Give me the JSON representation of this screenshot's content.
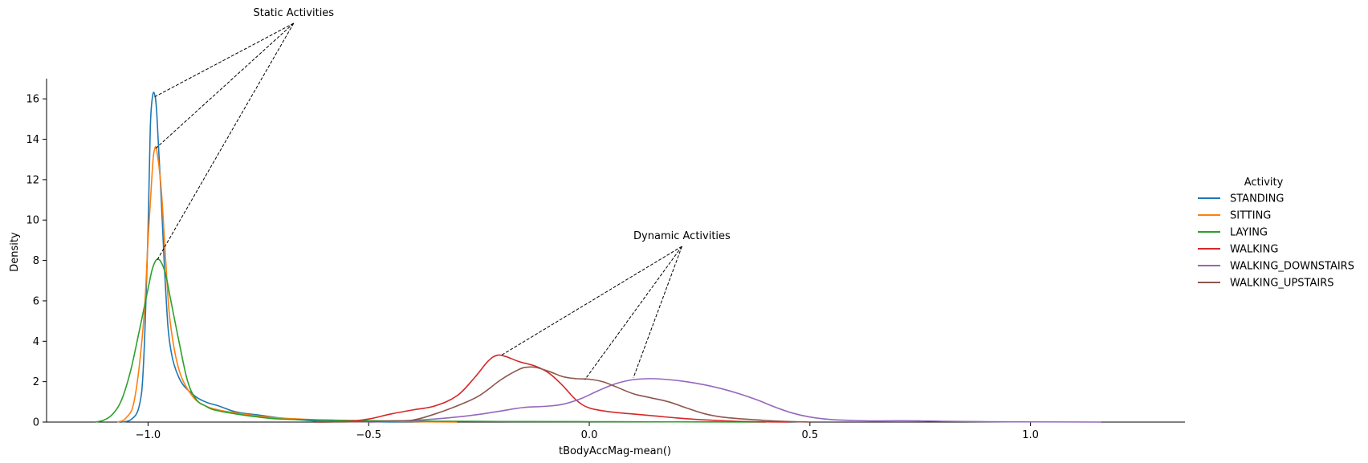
{
  "chart_data": {
    "type": "line",
    "xlabel": "tBodyAccMag-mean()",
    "ylabel": "Density",
    "xlim": [
      -1.23,
      1.35
    ],
    "ylim": [
      0,
      17
    ],
    "xticks": [
      -1.0,
      -0.5,
      0.0,
      0.5,
      1.0
    ],
    "xtick_labels": [
      "−1.0",
      "−0.5",
      "0.0",
      "0.5",
      "1.0"
    ],
    "yticks": [
      0,
      2,
      4,
      6,
      8,
      10,
      12,
      14,
      16
    ],
    "ytick_labels": [
      "0",
      "2",
      "4",
      "6",
      "8",
      "10",
      "12",
      "14",
      "16"
    ],
    "grid": false,
    "legend": {
      "title": "Activity",
      "placement": "right"
    },
    "series": [
      {
        "name": "STANDING",
        "color": "#1f77b4",
        "points": [
          [
            -1.06,
            0
          ],
          [
            -1.04,
            0.1
          ],
          [
            -1.02,
            0.8
          ],
          [
            -1.01,
            3.0
          ],
          [
            -1.0,
            9.5
          ],
          [
            -0.995,
            14.5
          ],
          [
            -0.99,
            16.1
          ],
          [
            -0.985,
            16.2
          ],
          [
            -0.98,
            15.2
          ],
          [
            -0.97,
            11.0
          ],
          [
            -0.96,
            6.5
          ],
          [
            -0.95,
            3.8
          ],
          [
            -0.93,
            2.2
          ],
          [
            -0.9,
            1.4
          ],
          [
            -0.87,
            1.0
          ],
          [
            -0.84,
            0.8
          ],
          [
            -0.8,
            0.5
          ],
          [
            -0.75,
            0.35
          ],
          [
            -0.7,
            0.2
          ],
          [
            -0.65,
            0.1
          ],
          [
            -0.6,
            0.04
          ],
          [
            -0.5,
            0.01
          ],
          [
            -0.4,
            0
          ]
        ]
      },
      {
        "name": "SITTING",
        "color": "#ff7f0e",
        "points": [
          [
            -1.07,
            0
          ],
          [
            -1.05,
            0.2
          ],
          [
            -1.03,
            1.2
          ],
          [
            -1.01,
            5.0
          ],
          [
            -1.0,
            9.0
          ],
          [
            -0.99,
            12.6
          ],
          [
            -0.985,
            13.5
          ],
          [
            -0.98,
            13.4
          ],
          [
            -0.97,
            11.5
          ],
          [
            -0.96,
            8.0
          ],
          [
            -0.95,
            5.0
          ],
          [
            -0.93,
            2.6
          ],
          [
            -0.9,
            1.3
          ],
          [
            -0.87,
            0.8
          ],
          [
            -0.84,
            0.6
          ],
          [
            -0.8,
            0.45
          ],
          [
            -0.75,
            0.3
          ],
          [
            -0.7,
            0.2
          ],
          [
            -0.6,
            0.1
          ],
          [
            -0.5,
            0.05
          ],
          [
            -0.4,
            0.02
          ],
          [
            -0.3,
            0
          ]
        ]
      },
      {
        "name": "LAYING",
        "color": "#2ca02c",
        "points": [
          [
            -1.12,
            0
          ],
          [
            -1.1,
            0.1
          ],
          [
            -1.08,
            0.4
          ],
          [
            -1.06,
            1.1
          ],
          [
            -1.04,
            2.5
          ],
          [
            -1.02,
            4.5
          ],
          [
            -1.0,
            6.6
          ],
          [
            -0.99,
            7.6
          ],
          [
            -0.98,
            8.05
          ],
          [
            -0.97,
            7.9
          ],
          [
            -0.96,
            7.3
          ],
          [
            -0.95,
            6.2
          ],
          [
            -0.93,
            4.0
          ],
          [
            -0.91,
            2.0
          ],
          [
            -0.89,
            1.1
          ],
          [
            -0.87,
            0.8
          ],
          [
            -0.85,
            0.6
          ],
          [
            -0.8,
            0.4
          ],
          [
            -0.75,
            0.25
          ],
          [
            -0.7,
            0.15
          ],
          [
            -0.6,
            0.1
          ],
          [
            -0.5,
            0.07
          ],
          [
            -0.4,
            0.05
          ],
          [
            -0.3,
            0.04
          ],
          [
            -0.2,
            0.03
          ],
          [
            0.0,
            0.02
          ],
          [
            0.2,
            0.01
          ],
          [
            0.4,
            0
          ]
        ]
      },
      {
        "name": "WALKING",
        "color": "#d62728",
        "points": [
          [
            -0.62,
            0
          ],
          [
            -0.55,
            0.03
          ],
          [
            -0.5,
            0.15
          ],
          [
            -0.45,
            0.4
          ],
          [
            -0.4,
            0.6
          ],
          [
            -0.35,
            0.8
          ],
          [
            -0.3,
            1.3
          ],
          [
            -0.26,
            2.2
          ],
          [
            -0.23,
            3.0
          ],
          [
            -0.21,
            3.3
          ],
          [
            -0.19,
            3.25
          ],
          [
            -0.16,
            3.0
          ],
          [
            -0.12,
            2.75
          ],
          [
            -0.09,
            2.4
          ],
          [
            -0.06,
            1.8
          ],
          [
            -0.03,
            1.1
          ],
          [
            0.0,
            0.7
          ],
          [
            0.05,
            0.5
          ],
          [
            0.1,
            0.4
          ],
          [
            0.15,
            0.3
          ],
          [
            0.2,
            0.2
          ],
          [
            0.25,
            0.12
          ],
          [
            0.3,
            0.07
          ],
          [
            0.35,
            0.03
          ],
          [
            0.4,
            0.01
          ],
          [
            0.45,
            0
          ]
        ]
      },
      {
        "name": "WALKING_DOWNSTAIRS",
        "color": "#9467bd",
        "points": [
          [
            -0.5,
            0
          ],
          [
            -0.45,
            0.03
          ],
          [
            -0.4,
            0.08
          ],
          [
            -0.35,
            0.15
          ],
          [
            -0.3,
            0.25
          ],
          [
            -0.25,
            0.38
          ],
          [
            -0.2,
            0.55
          ],
          [
            -0.15,
            0.72
          ],
          [
            -0.1,
            0.78
          ],
          [
            -0.06,
            0.88
          ],
          [
            -0.02,
            1.15
          ],
          [
            0.02,
            1.55
          ],
          [
            0.06,
            1.9
          ],
          [
            0.1,
            2.1
          ],
          [
            0.14,
            2.15
          ],
          [
            0.18,
            2.1
          ],
          [
            0.22,
            2.0
          ],
          [
            0.26,
            1.85
          ],
          [
            0.3,
            1.65
          ],
          [
            0.34,
            1.4
          ],
          [
            0.38,
            1.1
          ],
          [
            0.42,
            0.75
          ],
          [
            0.46,
            0.45
          ],
          [
            0.5,
            0.25
          ],
          [
            0.55,
            0.12
          ],
          [
            0.6,
            0.08
          ],
          [
            0.65,
            0.06
          ],
          [
            0.7,
            0.07
          ],
          [
            0.75,
            0.06
          ],
          [
            0.8,
            0.04
          ],
          [
            0.9,
            0.02
          ],
          [
            1.0,
            0.01
          ],
          [
            1.1,
            0.005
          ],
          [
            1.16,
            0
          ]
        ]
      },
      {
        "name": "WALKING_UPSTAIRS",
        "color": "#8c564b",
        "points": [
          [
            -0.62,
            0
          ],
          [
            -0.5,
            0.02
          ],
          [
            -0.45,
            0.06
          ],
          [
            -0.4,
            0.1
          ],
          [
            -0.35,
            0.4
          ],
          [
            -0.3,
            0.8
          ],
          [
            -0.25,
            1.3
          ],
          [
            -0.2,
            2.1
          ],
          [
            -0.16,
            2.6
          ],
          [
            -0.14,
            2.72
          ],
          [
            -0.12,
            2.7
          ],
          [
            -0.09,
            2.5
          ],
          [
            -0.06,
            2.25
          ],
          [
            -0.03,
            2.15
          ],
          [
            0.0,
            2.12
          ],
          [
            0.03,
            2.0
          ],
          [
            0.06,
            1.75
          ],
          [
            0.1,
            1.4
          ],
          [
            0.14,
            1.2
          ],
          [
            0.18,
            1.0
          ],
          [
            0.22,
            0.7
          ],
          [
            0.26,
            0.42
          ],
          [
            0.3,
            0.25
          ],
          [
            0.35,
            0.15
          ],
          [
            0.4,
            0.08
          ],
          [
            0.45,
            0.03
          ],
          [
            0.5,
            0
          ]
        ]
      }
    ],
    "annotations": [
      {
        "text": "Static Activities",
        "text_xy": [
          -0.67,
          20.0
        ],
        "targets": [
          [
            -0.985,
            16.1
          ],
          [
            -0.985,
            13.5
          ],
          [
            -0.98,
            8.0
          ]
        ]
      },
      {
        "text": "Dynamic Activities",
        "text_xy": [
          0.21,
          9.0
        ],
        "targets": [
          [
            -0.2,
            3.3
          ],
          [
            -0.01,
            2.1
          ],
          [
            0.1,
            2.2
          ]
        ]
      }
    ]
  }
}
